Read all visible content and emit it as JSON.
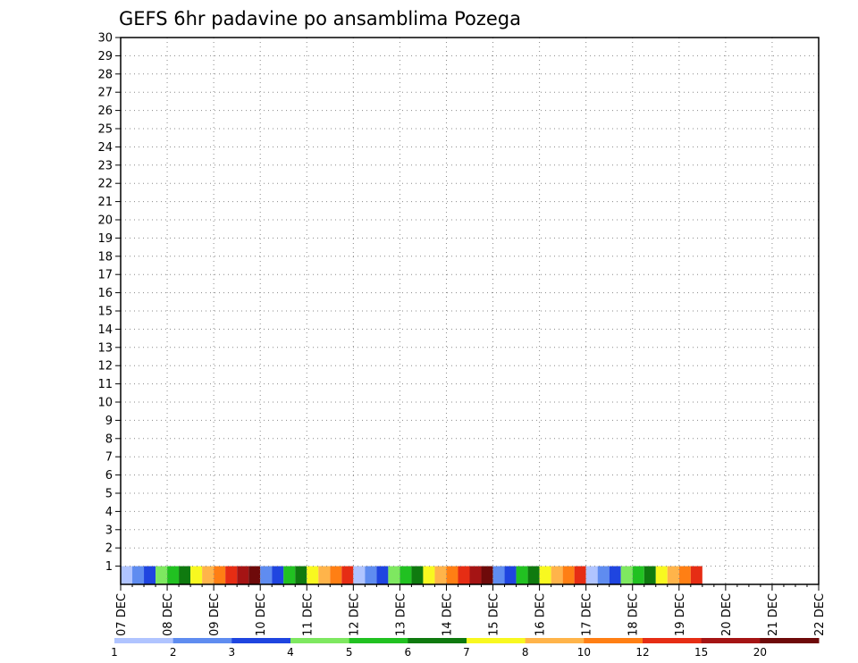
{
  "chart_data": {
    "type": "heatmap",
    "title": "GEFS 6hr padavine po ansamblima Pozega",
    "x_tick_labels": [
      "07 DEC",
      "08 DEC",
      "09 DEC",
      "10 DEC",
      "11 DEC",
      "12 DEC",
      "13 DEC",
      "14 DEC",
      "15 DEC",
      "16 DEC",
      "17 DEC",
      "18 DEC",
      "19 DEC",
      "20 DEC",
      "21 DEC",
      "22 DEC"
    ],
    "y_tick_labels": [
      "1",
      "2",
      "3",
      "4",
      "5",
      "6",
      "7",
      "8",
      "9",
      "10",
      "11",
      "12",
      "13",
      "14",
      "15",
      "16",
      "17",
      "18",
      "19",
      "20",
      "21",
      "22",
      "23",
      "24",
      "25",
      "26",
      "27",
      "28",
      "29",
      "30"
    ],
    "xlim": [
      0,
      60
    ],
    "ylim": [
      0,
      30
    ],
    "grid": true,
    "colorbar": {
      "labels": [
        "1",
        "2",
        "3",
        "4",
        "5",
        "6",
        "7",
        "8",
        "10",
        "12",
        "15",
        "20"
      ],
      "colors": [
        "#b0c4ff",
        "#5f8cf0",
        "#1f45e0",
        "#7ee860",
        "#21c121",
        "#0f7a0f",
        "#f8f820",
        "#ffb44a",
        "#ff7f14",
        "#e62d14",
        "#a51414",
        "#6e0a0a"
      ]
    },
    "cells": [
      [
        0,
        1,
        1
      ],
      [
        1,
        1,
        2
      ],
      [
        2,
        1,
        3
      ],
      [
        3,
        1,
        4
      ],
      [
        4,
        1,
        5
      ],
      [
        5,
        1,
        6
      ],
      [
        6,
        1,
        7
      ],
      [
        7,
        1,
        8
      ],
      [
        8,
        1,
        10
      ],
      [
        9,
        1,
        12
      ],
      [
        10,
        1,
        15
      ],
      [
        11,
        1,
        20
      ],
      [
        12,
        1,
        2
      ],
      [
        13,
        1,
        3
      ],
      [
        14,
        1,
        5
      ],
      [
        15,
        1,
        6
      ],
      [
        16,
        1,
        7
      ],
      [
        17,
        1,
        8
      ],
      [
        18,
        1,
        10
      ],
      [
        19,
        1,
        12
      ],
      [
        20,
        1,
        1
      ],
      [
        21,
        1,
        2
      ],
      [
        22,
        1,
        3
      ],
      [
        23,
        1,
        4
      ],
      [
        24,
        1,
        5
      ],
      [
        25,
        1,
        6
      ],
      [
        26,
        1,
        7
      ],
      [
        27,
        1,
        8
      ],
      [
        28,
        1,
        10
      ],
      [
        29,
        1,
        12
      ],
      [
        30,
        1,
        15
      ],
      [
        31,
        1,
        20
      ],
      [
        32,
        1,
        2
      ],
      [
        33,
        1,
        3
      ],
      [
        34,
        1,
        5
      ],
      [
        35,
        1,
        6
      ],
      [
        36,
        1,
        7
      ],
      [
        37,
        1,
        8
      ],
      [
        38,
        1,
        10
      ],
      [
        39,
        1,
        12
      ],
      [
        40,
        1,
        1
      ],
      [
        41,
        1,
        2
      ],
      [
        42,
        1,
        3
      ],
      [
        43,
        1,
        4
      ],
      [
        44,
        1,
        5
      ],
      [
        45,
        1,
        6
      ],
      [
        46,
        1,
        7
      ],
      [
        47,
        1,
        8
      ],
      [
        48,
        1,
        10
      ],
      [
        49,
        1,
        12
      ]
    ]
  }
}
